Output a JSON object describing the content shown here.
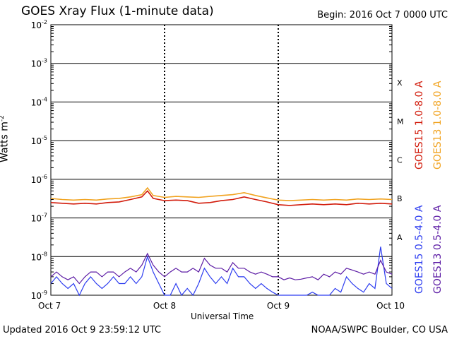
{
  "header": {
    "title": "GOES Xray Flux (1-minute data)",
    "begin": "Begin:  2016 Oct 7 0000 UTC"
  },
  "footer": {
    "updated": "Updated 2016 Oct  9 23:59:12 UTC",
    "credit": "NOAA/SWPC Boulder, CO USA"
  },
  "colors": {
    "goes15_long": "#d21b0b",
    "goes13_long": "#f1a320",
    "goes15_short": "#2c3cf0",
    "goes13_short": "#5b1aa4"
  },
  "chart_data": {
    "type": "line",
    "title": "GOES Xray Flux (1-minute data)",
    "xlabel": "Universal Time",
    "ylabel": "Watts m-2",
    "yscale": "log",
    "ylim": [
      1e-09,
      0.01
    ],
    "xlim": [
      0,
      3
    ],
    "x_ticks": [
      {
        "pos": 0,
        "label": "Oct 7"
      },
      {
        "pos": 1,
        "label": "Oct 8"
      },
      {
        "pos": 2,
        "label": "Oct 9"
      },
      {
        "pos": 3,
        "label": "Oct 10"
      }
    ],
    "y_ticks": [
      {
        "exp": -2,
        "label": "10",
        "sup": "-2"
      },
      {
        "exp": -3,
        "label": "10",
        "sup": "-3"
      },
      {
        "exp": -4,
        "label": "10",
        "sup": "-4"
      },
      {
        "exp": -5,
        "label": "10",
        "sup": "-5"
      },
      {
        "exp": -6,
        "label": "10",
        "sup": "-6"
      },
      {
        "exp": -7,
        "label": "10",
        "sup": "-7"
      },
      {
        "exp": -8,
        "label": "10",
        "sup": "-8"
      },
      {
        "exp": -9,
        "label": "10",
        "sup": "-9"
      }
    ],
    "flare_classes": [
      {
        "label": "X",
        "exp": -3.5
      },
      {
        "label": "M",
        "exp": -4.5
      },
      {
        "label": "C",
        "exp": -5.5
      },
      {
        "label": "B",
        "exp": -6.5
      },
      {
        "label": "A",
        "exp": -7.5
      }
    ],
    "grid": true,
    "series": [
      {
        "name": "GOES15 1.0-8.0 A",
        "color": "#d21b0b",
        "x": [
          0,
          0.1,
          0.2,
          0.3,
          0.4,
          0.5,
          0.6,
          0.7,
          0.8,
          0.85,
          0.9,
          1.0,
          1.1,
          1.2,
          1.3,
          1.4,
          1.5,
          1.6,
          1.7,
          1.8,
          1.9,
          2.0,
          2.1,
          2.2,
          2.3,
          2.4,
          2.5,
          2.6,
          2.7,
          2.8,
          2.9,
          3.0
        ],
        "y": [
          2.5e-07,
          2.4e-07,
          2.3e-07,
          2.4e-07,
          2.3e-07,
          2.5e-07,
          2.6e-07,
          3e-07,
          3.5e-07,
          5e-07,
          3.2e-07,
          2.8e-07,
          2.9e-07,
          2.8e-07,
          2.4e-07,
          2.5e-07,
          2.8e-07,
          3e-07,
          3.5e-07,
          3e-07,
          2.6e-07,
          2.2e-07,
          2.1e-07,
          2.2e-07,
          2.3e-07,
          2.2e-07,
          2.3e-07,
          2.2e-07,
          2.4e-07,
          2.3e-07,
          2.4e-07,
          2.3e-07
        ]
      },
      {
        "name": "GOES13 1.0-8.0 A",
        "color": "#f1a320",
        "x": [
          0,
          0.1,
          0.2,
          0.3,
          0.4,
          0.5,
          0.6,
          0.7,
          0.8,
          0.85,
          0.9,
          1.0,
          1.1,
          1.2,
          1.3,
          1.4,
          1.5,
          1.6,
          1.7,
          1.8,
          1.9,
          2.0,
          2.1,
          2.2,
          2.3,
          2.4,
          2.5,
          2.6,
          2.7,
          2.8,
          2.9,
          3.0
        ],
        "y": [
          3.2e-07,
          3e-07,
          2.9e-07,
          3e-07,
          2.9e-07,
          3.1e-07,
          3.2e-07,
          3.5e-07,
          4e-07,
          6e-07,
          3.8e-07,
          3.4e-07,
          3.6e-07,
          3.5e-07,
          3.4e-07,
          3.6e-07,
          3.8e-07,
          4e-07,
          4.5e-07,
          3.8e-07,
          3.3e-07,
          2.9e-07,
          2.8e-07,
          2.9e-07,
          3e-07,
          2.9e-07,
          3e-07,
          2.9e-07,
          3.1e-07,
          3e-07,
          3.1e-07,
          3e-07
        ]
      },
      {
        "name": "GOES15 0.5-4.0 A",
        "color": "#2c3cf0",
        "x": [
          0,
          0.05,
          0.1,
          0.15,
          0.2,
          0.25,
          0.3,
          0.35,
          0.4,
          0.45,
          0.5,
          0.55,
          0.6,
          0.65,
          0.7,
          0.75,
          0.8,
          0.85,
          0.9,
          0.95,
          1.0,
          1.05,
          1.1,
          1.15,
          1.2,
          1.25,
          1.3,
          1.35,
          1.4,
          1.45,
          1.5,
          1.55,
          1.6,
          1.65,
          1.7,
          1.75,
          1.8,
          1.85,
          1.9,
          1.95,
          2.0,
          2.05,
          2.1,
          2.15,
          2.2,
          2.25,
          2.3,
          2.35,
          2.4,
          2.45,
          2.5,
          2.55,
          2.6,
          2.65,
          2.7,
          2.75,
          2.8,
          2.85,
          2.9,
          2.95,
          3.0
        ],
        "y": [
          2e-09,
          3e-09,
          2e-09,
          1.5e-09,
          2e-09,
          1e-09,
          2e-09,
          3e-09,
          2e-09,
          1.5e-09,
          2e-09,
          3e-09,
          2e-09,
          2e-09,
          3e-09,
          2e-09,
          3e-09,
          1e-08,
          4e-09,
          2e-09,
          1e-09,
          1e-09,
          2e-09,
          1e-09,
          1.5e-09,
          1e-09,
          2e-09,
          5e-09,
          3e-09,
          2e-09,
          3e-09,
          2e-09,
          5e-09,
          3e-09,
          3e-09,
          2e-09,
          1.5e-09,
          2e-09,
          1.5e-09,
          1.2e-09,
          1e-09,
          1e-09,
          1e-09,
          1e-09,
          1e-09,
          1e-09,
          1.2e-09,
          1e-09,
          1e-09,
          1e-09,
          1.5e-09,
          1.2e-09,
          3e-09,
          2e-09,
          1.5e-09,
          1.2e-09,
          2e-09,
          1.5e-09,
          1.8e-08,
          2e-09,
          1.5e-09
        ]
      },
      {
        "name": "GOES13 0.5-4.0 A",
        "color": "#5b1aa4",
        "x": [
          0,
          0.05,
          0.1,
          0.15,
          0.2,
          0.25,
          0.3,
          0.35,
          0.4,
          0.45,
          0.5,
          0.55,
          0.6,
          0.65,
          0.7,
          0.75,
          0.8,
          0.85,
          0.9,
          0.95,
          1.0,
          1.05,
          1.1,
          1.15,
          1.2,
          1.25,
          1.3,
          1.35,
          1.4,
          1.45,
          1.5,
          1.55,
          1.6,
          1.65,
          1.7,
          1.75,
          1.8,
          1.85,
          1.9,
          1.95,
          2.0,
          2.05,
          2.1,
          2.15,
          2.2,
          2.25,
          2.3,
          2.35,
          2.4,
          2.45,
          2.5,
          2.55,
          2.6,
          2.65,
          2.7,
          2.75,
          2.8,
          2.85,
          2.9,
          2.95,
          3.0
        ],
        "y": [
          3e-09,
          4e-09,
          3e-09,
          2.5e-09,
          3e-09,
          2e-09,
          3e-09,
          4e-09,
          4e-09,
          3e-09,
          4e-09,
          4e-09,
          3e-09,
          4e-09,
          5e-09,
          4e-09,
          6e-09,
          1.2e-08,
          6e-09,
          4e-09,
          3e-09,
          4e-09,
          5e-09,
          4e-09,
          4e-09,
          5e-09,
          4e-09,
          9e-09,
          6e-09,
          5e-09,
          5e-09,
          4e-09,
          7e-09,
          5e-09,
          5e-09,
          4e-09,
          3.5e-09,
          4e-09,
          3.5e-09,
          3e-09,
          3e-09,
          2.5e-09,
          2.8e-09,
          2.5e-09,
          2.6e-09,
          2.8e-09,
          3e-09,
          2.5e-09,
          3.5e-09,
          3e-09,
          4e-09,
          3.5e-09,
          5e-09,
          4.5e-09,
          4e-09,
          3.5e-09,
          4e-09,
          3.5e-09,
          8e-09,
          4e-09,
          3.5e-09
        ]
      }
    ]
  }
}
